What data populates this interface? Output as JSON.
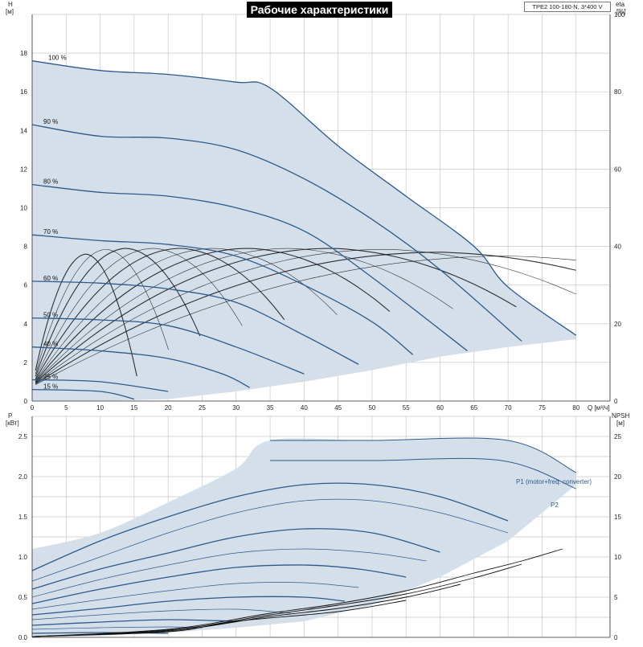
{
  "header": {
    "title": "Рабочие характеристики",
    "model": "TPE2 100-180-N, 3*400 V"
  },
  "chart_data": [
    {
      "id": "qh",
      "type": "line",
      "xlabel": "Q [м³/ч]",
      "ylabel": "H [м]",
      "y2label": "eta [%]",
      "xlim": [
        0,
        85
      ],
      "ylim": [
        0,
        20
      ],
      "y2lim": [
        0,
        100
      ],
      "xticks": [
        0,
        5,
        10,
        15,
        20,
        25,
        30,
        35,
        40,
        45,
        50,
        55,
        60,
        65,
        70,
        75,
        80
      ],
      "yticks": [
        0,
        2,
        4,
        6,
        8,
        10,
        12,
        14,
        16,
        18
      ],
      "y2ticks": [
        0,
        20,
        40,
        60,
        80,
        100
      ],
      "grid": true,
      "envelope": {
        "upper": [
          [
            0,
            17.6
          ],
          [
            10,
            17.1
          ],
          [
            20,
            16.9
          ],
          [
            30,
            16.5
          ],
          [
            35,
            16.2
          ],
          [
            45,
            13.2
          ],
          [
            55,
            10.6
          ],
          [
            65,
            8.0
          ],
          [
            70,
            5.9
          ],
          [
            80,
            3.4
          ]
        ],
        "lower": [
          [
            80,
            3.2
          ],
          [
            70,
            2.8
          ],
          [
            60,
            2.3
          ],
          [
            50,
            1.6
          ],
          [
            40,
            1.0
          ],
          [
            30,
            0.5
          ],
          [
            20,
            0.1
          ],
          [
            10,
            0.0
          ],
          [
            0,
            0.0
          ]
        ]
      },
      "series": [
        {
          "name": "100 %",
          "values": [
            [
              0,
              17.6
            ],
            [
              10,
              17.1
            ],
            [
              20,
              16.9
            ],
            [
              30,
              16.5
            ],
            [
              35,
              16.2
            ],
            [
              45,
              13.2
            ],
            [
              55,
              10.6
            ],
            [
              65,
              8.0
            ],
            [
              70,
              5.9
            ],
            [
              80,
              3.4
            ]
          ]
        },
        {
          "name": "90 %",
          "values": [
            [
              0,
              14.3
            ],
            [
              10,
              13.7
            ],
            [
              20,
              13.6
            ],
            [
              30,
              13.0
            ],
            [
              40,
              11.5
            ],
            [
              50,
              9.4
            ],
            [
              60,
              6.8
            ],
            [
              72,
              3.1
            ]
          ]
        },
        {
          "name": "80 %",
          "values": [
            [
              0,
              11.2
            ],
            [
              10,
              10.8
            ],
            [
              20,
              10.6
            ],
            [
              30,
              10.0
            ],
            [
              40,
              8.8
            ],
            [
              50,
              6.4
            ],
            [
              64,
              2.6
            ]
          ]
        },
        {
          "name": "70 %",
          "values": [
            [
              0,
              8.6
            ],
            [
              10,
              8.3
            ],
            [
              20,
              8.1
            ],
            [
              30,
              7.5
            ],
            [
              40,
              6.0
            ],
            [
              50,
              4.1
            ],
            [
              56,
              2.4
            ]
          ]
        },
        {
          "name": "60 %",
          "values": [
            [
              0,
              6.2
            ],
            [
              10,
              6.1
            ],
            [
              20,
              5.8
            ],
            [
              30,
              5.1
            ],
            [
              40,
              3.4
            ],
            [
              48,
              1.9
            ]
          ]
        },
        {
          "name": "50 %",
          "values": [
            [
              0,
              4.3
            ],
            [
              10,
              4.2
            ],
            [
              20,
              3.9
            ],
            [
              30,
              2.8
            ],
            [
              40,
              1.4
            ]
          ]
        },
        {
          "name": "40 %",
          "values": [
            [
              0,
              2.8
            ],
            [
              10,
              2.6
            ],
            [
              20,
              2.2
            ],
            [
              28,
              1.4
            ],
            [
              32,
              0.7
            ]
          ]
        },
        {
          "name": "25 %",
          "values": [
            [
              0,
              1.1
            ],
            [
              10,
              1.0
            ],
            [
              20,
              0.5
            ]
          ]
        },
        {
          "name": "15 %",
          "values": [
            [
              0,
              0.6
            ],
            [
              10,
              0.5
            ],
            [
              15,
              0.1
            ]
          ]
        }
      ]
    },
    {
      "id": "power",
      "type": "line",
      "xlabel": "",
      "ylabel": "P [кВт]",
      "y2label": "NPSH [м]",
      "xlim": [
        0,
        85
      ],
      "ylim": [
        0,
        2.75
      ],
      "y2lim": [
        0,
        27.5
      ],
      "yticks": [
        0,
        0.5,
        1.0,
        1.5,
        2.0,
        2.5
      ],
      "y2ticks": [
        0,
        5,
        10,
        15,
        20,
        25
      ],
      "grid": true,
      "envelope": {
        "upper": [
          [
            0,
            1.1
          ],
          [
            10,
            1.3
          ],
          [
            20,
            1.68
          ],
          [
            30,
            2.1
          ],
          [
            35,
            2.45
          ],
          [
            50,
            2.45
          ],
          [
            70,
            2.45
          ],
          [
            80,
            2.05
          ]
        ],
        "lower": [
          [
            80,
            1.9
          ],
          [
            70,
            1.2
          ],
          [
            60,
            0.75
          ],
          [
            50,
            0.4
          ],
          [
            40,
            0.2
          ],
          [
            30,
            0.12
          ],
          [
            20,
            0.06
          ],
          [
            10,
            0.02
          ],
          [
            0,
            0.0
          ]
        ]
      },
      "series": [
        {
          "name": "P1 (motor+freq. converter)",
          "values": [
            [
              35,
              2.45
            ],
            [
              50,
              2.45
            ],
            [
              70,
              2.45
            ],
            [
              80,
              2.05
            ]
          ]
        },
        {
          "name": "P2",
          "values": [
            [
              35,
              2.2
            ],
            [
              50,
              2.2
            ],
            [
              69,
              2.2
            ],
            [
              80,
              1.85
            ]
          ]
        },
        {
          "values": [
            [
              0,
              0.83
            ],
            [
              10,
              1.2
            ],
            [
              20,
              1.5
            ],
            [
              30,
              1.75
            ],
            [
              40,
              1.9
            ],
            [
              50,
              1.9
            ],
            [
              60,
              1.75
            ],
            [
              70,
              1.45
            ]
          ]
        },
        {
          "values": [
            [
              0,
              0.7
            ],
            [
              10,
              1.0
            ],
            [
              20,
              1.3
            ],
            [
              30,
              1.55
            ],
            [
              40,
              1.7
            ],
            [
              50,
              1.7
            ],
            [
              60,
              1.55
            ],
            [
              70,
              1.3
            ]
          ]
        },
        {
          "values": [
            [
              0,
              0.6
            ],
            [
              10,
              0.85
            ],
            [
              20,
              1.05
            ],
            [
              30,
              1.25
            ],
            [
              40,
              1.35
            ],
            [
              50,
              1.3
            ],
            [
              60,
              1.06
            ]
          ]
        },
        {
          "values": [
            [
              0,
              0.5
            ],
            [
              10,
              0.72
            ],
            [
              20,
              0.9
            ],
            [
              30,
              1.05
            ],
            [
              40,
              1.1
            ],
            [
              50,
              1.05
            ],
            [
              58,
              0.95
            ]
          ]
        },
        {
          "values": [
            [
              0,
              0.42
            ],
            [
              10,
              0.6
            ],
            [
              20,
              0.75
            ],
            [
              30,
              0.87
            ],
            [
              40,
              0.9
            ],
            [
              48,
              0.85
            ],
            [
              55,
              0.75
            ]
          ]
        },
        {
          "values": [
            [
              0,
              0.35
            ],
            [
              10,
              0.47
            ],
            [
              20,
              0.58
            ],
            [
              30,
              0.67
            ],
            [
              40,
              0.68
            ],
            [
              48,
              0.62
            ]
          ]
        },
        {
          "values": [
            [
              0,
              0.28
            ],
            [
              10,
              0.36
            ],
            [
              20,
              0.45
            ],
            [
              30,
              0.5
            ],
            [
              40,
              0.5
            ],
            [
              46,
              0.45
            ]
          ]
        },
        {
          "values": [
            [
              0,
              0.22
            ],
            [
              10,
              0.28
            ],
            [
              20,
              0.33
            ],
            [
              30,
              0.35
            ],
            [
              38,
              0.3
            ]
          ]
        },
        {
          "values": [
            [
              0,
              0.15
            ],
            [
              10,
              0.19
            ],
            [
              20,
              0.22
            ],
            [
              30,
              0.2
            ]
          ]
        },
        {
          "values": [
            [
              0,
              0.1
            ],
            [
              10,
              0.12
            ],
            [
              20,
              0.13
            ],
            [
              25,
              0.12
            ]
          ]
        },
        {
          "values": [
            [
              0,
              0.05
            ],
            [
              10,
              0.06
            ],
            [
              20,
              0.05
            ]
          ]
        }
      ],
      "npsh": [
        {
          "values": [
            [
              0,
              0.1
            ],
            [
              20,
              1.0
            ],
            [
              35,
              3.0
            ],
            [
              45,
              4.2
            ],
            [
              55,
              5.8
            ],
            [
              65,
              8.0
            ],
            [
              72,
              9.5
            ],
            [
              78,
              11.0
            ]
          ]
        },
        {
          "values": [
            [
              0,
              0.1
            ],
            [
              20,
              0.9
            ],
            [
              35,
              2.8
            ],
            [
              45,
              4.0
            ],
            [
              55,
              5.4
            ],
            [
              65,
              7.4
            ],
            [
              72,
              9.1
            ]
          ]
        },
        {
          "values": [
            [
              0,
              0.1
            ],
            [
              20,
              0.8
            ],
            [
              35,
              2.6
            ],
            [
              45,
              3.6
            ],
            [
              55,
              5.0
            ],
            [
              63,
              6.6
            ]
          ]
        },
        {
          "values": [
            [
              0,
              0.1
            ],
            [
              20,
              0.7
            ],
            [
              30,
              2.0
            ],
            [
              45,
              3.2
            ],
            [
              55,
              4.6
            ]
          ]
        }
      ]
    }
  ],
  "labels": {
    "qh_x_unit": "Q [м³/ч]",
    "qh_y_name": "H",
    "qh_y_unit": "[м]",
    "qh_y2_name": "eta",
    "qh_y2_unit": "[%]",
    "p_y_name": "P",
    "p_y_unit": "[кВт]",
    "p_y2_name": "NPSH",
    "p_y2_unit": "[м]"
  },
  "colors": {
    "envelope_fill": "#d4dfea",
    "curve_blue": "#2d5a8c",
    "eta_black": "#111111",
    "grid": "#c8c8c8",
    "legend_text": "#2a5a8a"
  }
}
